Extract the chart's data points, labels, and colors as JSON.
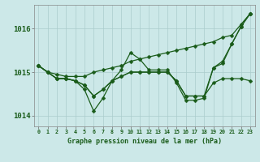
{
  "title": "Graphe pression niveau de la mer (hPa)",
  "background_color": "#cce8e8",
  "grid_color": "#aacccc",
  "line_color": "#1a5c1a",
  "xlim": [
    -0.5,
    23.5
  ],
  "ylim": [
    1013.75,
    1016.55
  ],
  "yticks": [
    1014,
    1015,
    1016
  ],
  "xticks": [
    0,
    1,
    2,
    3,
    4,
    5,
    6,
    7,
    8,
    9,
    10,
    11,
    12,
    13,
    14,
    15,
    16,
    17,
    18,
    19,
    20,
    21,
    22,
    23
  ],
  "line_a": [
    1015.15,
    1015.0,
    1014.95,
    1014.9,
    1014.9,
    1014.9,
    1015.0,
    1015.05,
    1015.1,
    1015.15,
    1015.25,
    1015.3,
    1015.35,
    1015.4,
    1015.45,
    1015.5,
    1015.55,
    1015.6,
    1015.65,
    1015.7,
    1015.8,
    1015.85,
    1016.1,
    1016.35
  ],
  "line_b": [
    1015.15,
    1015.0,
    1014.85,
    1014.85,
    1014.8,
    1014.6,
    1014.1,
    1014.4,
    1014.8,
    1015.05,
    1015.45,
    1015.3,
    1015.05,
    1015.05,
    1015.05,
    1014.75,
    1014.35,
    1014.35,
    1014.4,
    1015.1,
    1015.25,
    1015.65,
    1016.05,
    1016.35
  ],
  "line_c": [
    1015.15,
    1015.0,
    1014.85,
    1014.85,
    1014.8,
    1014.7,
    1014.45,
    1014.6,
    1014.8,
    1014.9,
    1015.0,
    1015.0,
    1015.0,
    1015.0,
    1015.0,
    1014.8,
    1014.45,
    1014.45,
    1014.45,
    1014.75,
    1014.85,
    1014.85,
    1014.85,
    1014.8
  ],
  "line_d": [
    1015.15,
    1015.0,
    1014.85,
    1014.85,
    1014.8,
    1014.7,
    1014.45,
    1014.6,
    1014.8,
    1014.9,
    1015.0,
    1015.0,
    1015.0,
    1015.0,
    1015.0,
    1014.8,
    1014.45,
    1014.45,
    1014.45,
    1015.1,
    1015.2,
    1015.65,
    1016.05,
    1016.35
  ]
}
